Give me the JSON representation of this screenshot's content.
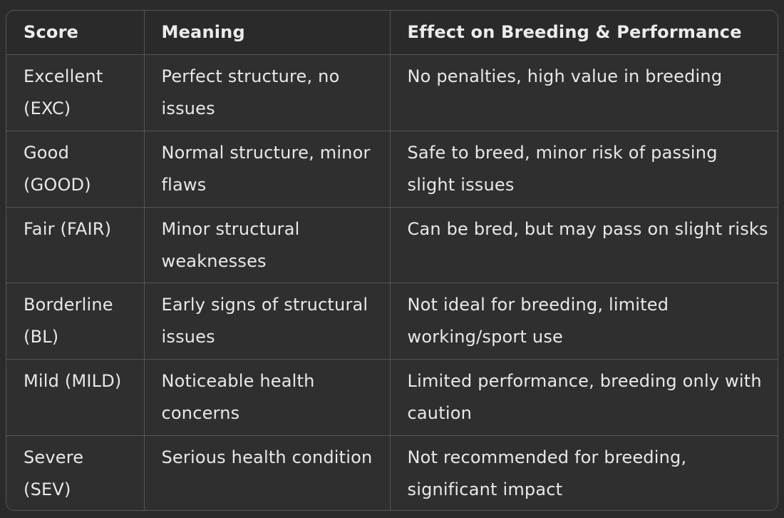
{
  "table": {
    "headers": [
      "Score",
      "Meaning",
      "Effect on Breeding & Performance"
    ],
    "rows": [
      [
        "Excellent (EXC)",
        "Perfect structure, no issues",
        "No penalties, high value in breeding"
      ],
      [
        "Good (GOOD)",
        "Normal structure, minor flaws",
        "Safe to breed, minor risk of passing slight issues"
      ],
      [
        "Fair (FAIR)",
        "Minor structural weaknesses",
        "Can be bred, but may pass on slight risks"
      ],
      [
        "Borderline (BL)",
        "Early signs of structural issues",
        "Not ideal for breeding, limited working/sport use"
      ],
      [
        "Mild (MILD)",
        "Noticeable health concerns",
        "Limited performance, breeding only with caution"
      ],
      [
        "Severe (SEV)",
        "Serious health condition",
        "Not recommended for breeding, significant impact"
      ]
    ]
  }
}
